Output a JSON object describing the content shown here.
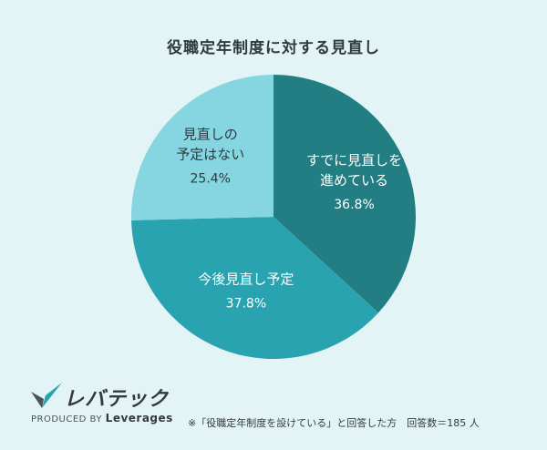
{
  "chart_data": {
    "type": "pie",
    "title": "役職定年制度に対する見直し",
    "slices": [
      {
        "label_lines": [
          "すでに見直しを",
          "進めている"
        ],
        "value": 36.8,
        "value_label": "36.8%",
        "color": "#227e82",
        "text_color": "#ffffff"
      },
      {
        "label_lines": [
          "今後見直し予定"
        ],
        "value": 37.8,
        "value_label": "37.8%",
        "color": "#2aa3b1",
        "text_color": "#ffffff"
      },
      {
        "label_lines": [
          "見直しの",
          "予定はない"
        ],
        "value": 25.4,
        "value_label": "25.4%",
        "color": "#86d6e2",
        "text_color": "#2f3a40"
      }
    ],
    "start": "12 o'clock",
    "direction": "clockwise"
  },
  "logo": {
    "wordmark": "レバテック",
    "produced_by": "PRODUCED BY",
    "brand": "Leverages"
  },
  "footnote": "※「役職定年制度を設けている」と回答した方　回答数＝185 人",
  "colors": {
    "background": "#e3f4f7"
  }
}
